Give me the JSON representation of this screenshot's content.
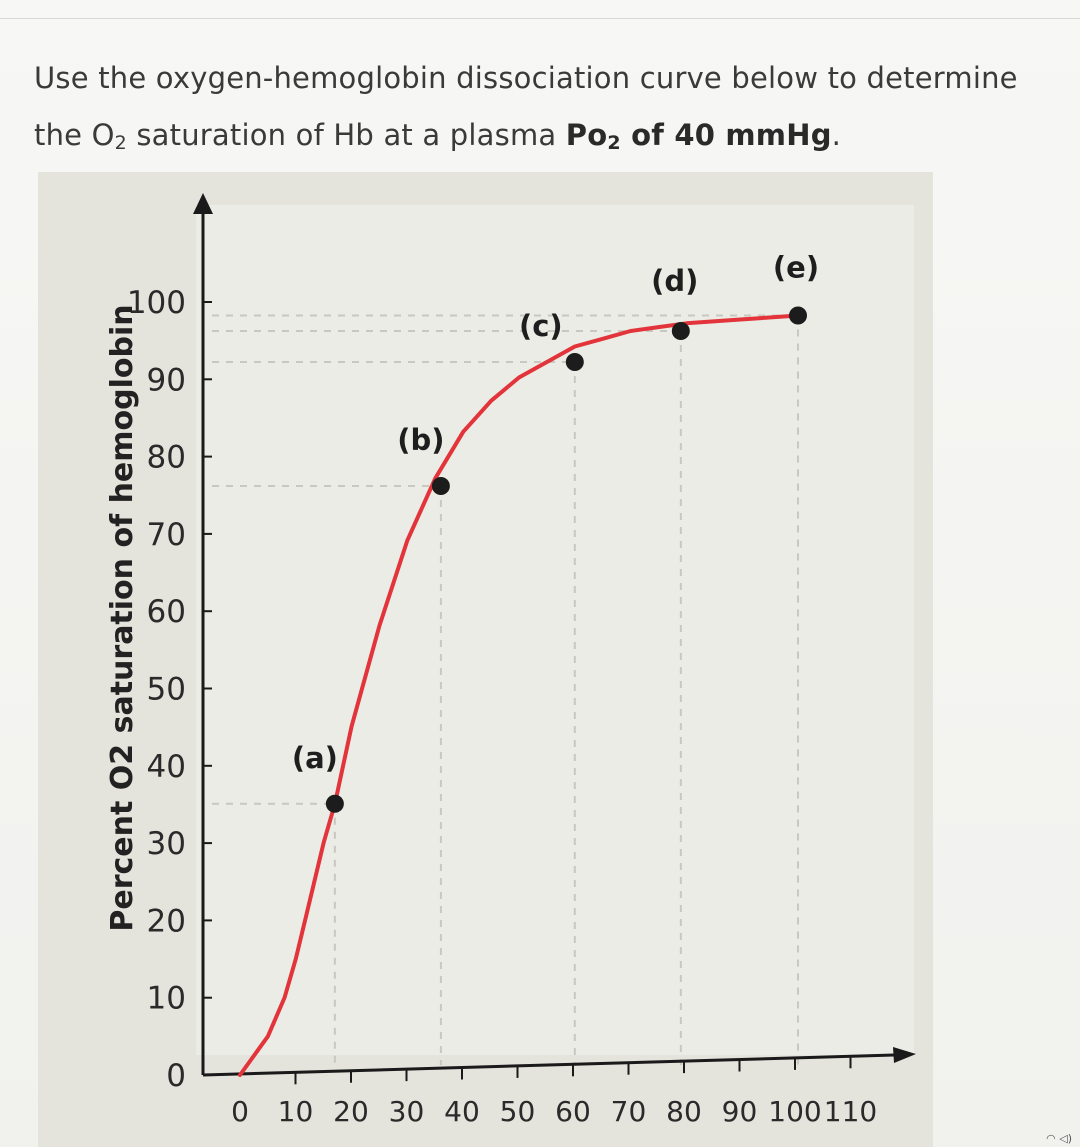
{
  "question": {
    "text_before": "Use the oxygen-hemoglobin dissociation curve below to determine the O",
    "sub1": "2",
    "text_mid": " saturation of Hb at a plasma ",
    "bold_prefix": "Po",
    "sub2": "2",
    "bold_value": " of 40 mmHg",
    "text_end": "."
  },
  "chart_data": {
    "type": "line",
    "ylabel": "Percent O2 saturation of hemoglobin",
    "xlabel": "",
    "xlim": [
      0,
      115
    ],
    "ylim": [
      0,
      100
    ],
    "x_ticks": [
      0,
      10,
      20,
      30,
      40,
      50,
      60,
      70,
      80,
      90,
      100,
      110
    ],
    "x_tick_labels": [
      "0",
      "10",
      "20",
      "30",
      "40",
      "50",
      "60",
      "70",
      "80",
      "90",
      "100",
      "110"
    ],
    "y_ticks": [
      0,
      10,
      20,
      30,
      40,
      50,
      60,
      70,
      80,
      90,
      100
    ],
    "y_tick_labels": [
      "0",
      "10",
      "20",
      "30",
      "40",
      "50",
      "60",
      "70",
      "80",
      "90",
      "100"
    ],
    "series": [
      {
        "color": "#e2343a",
        "x": [
          0,
          2,
          5,
          8,
          10,
          12,
          15,
          17,
          20,
          25,
          30,
          35,
          40,
          45,
          50,
          55,
          60,
          65,
          70,
          75,
          80,
          90,
          100
        ],
        "y": [
          0,
          2,
          5,
          10,
          15,
          21,
          30,
          35,
          45,
          58,
          69,
          77,
          83,
          87,
          90,
          92,
          94,
          95,
          96,
          96.5,
          97,
          97.5,
          98
        ]
      }
    ],
    "points": [
      {
        "label": "(a)",
        "x": 17,
        "y": 35
      },
      {
        "label": "(b)",
        "x": 36,
        "y": 76
      },
      {
        "label": "(c)",
        "x": 60,
        "y": 92
      },
      {
        "label": "(d)",
        "x": 79,
        "y": 96
      },
      {
        "label": "(e)",
        "x": 100,
        "y": 98
      }
    ],
    "grid": "dashed guide lines from labeled points to axes",
    "point_color": "#1c1c1c"
  }
}
